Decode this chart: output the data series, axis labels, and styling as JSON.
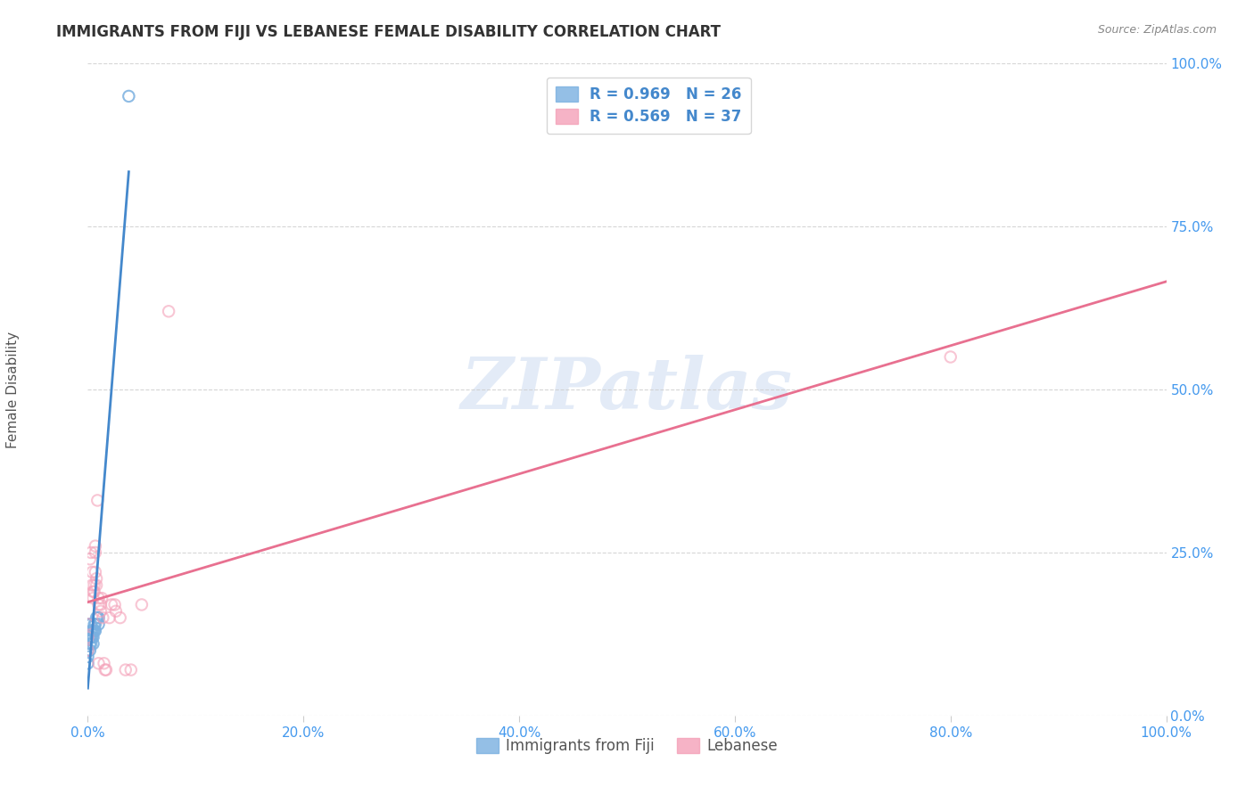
{
  "title": "IMMIGRANTS FROM FIJI VS LEBANESE FEMALE DISABILITY CORRELATION CHART",
  "source": "Source: ZipAtlas.com",
  "xlabel": "",
  "ylabel": "Female Disability",
  "xlim": [
    0.0,
    1.0
  ],
  "ylim": [
    0.0,
    1.0
  ],
  "xticks": [
    0.0,
    0.2,
    0.4,
    0.6,
    0.8,
    1.0
  ],
  "yticks": [
    0.0,
    0.25,
    0.5,
    0.75,
    1.0
  ],
  "xtick_labels": [
    "0.0%",
    "20.0%",
    "40.0%",
    "60.0%",
    "80.0%",
    "100.0%"
  ],
  "ytick_labels": [
    "",
    "25.0%",
    "50.0%",
    "75.0%",
    "100.0%"
  ],
  "right_ytick_labels": [
    "0.0%",
    "25.0%",
    "50.0%",
    "75.0%",
    "100.0%"
  ],
  "fiji_color": "#7ab0e0",
  "lebanese_color": "#f4a0b8",
  "fiji_line_color": "#4488cc",
  "lebanese_line_color": "#e87090",
  "fiji_R": 0.969,
  "fiji_N": 26,
  "lebanese_R": 0.569,
  "lebanese_N": 37,
  "legend_fiji_label": "R = 0.969   N = 26",
  "legend_lebanese_label": "R = 0.569   N = 37",
  "watermark": "ZIPatlas",
  "fiji_x": [
    0.0,
    0.0,
    0.0,
    0.0,
    0.0,
    0.002,
    0.002,
    0.002,
    0.003,
    0.003,
    0.003,
    0.003,
    0.004,
    0.004,
    0.005,
    0.005,
    0.005,
    0.006,
    0.006,
    0.007,
    0.007,
    0.008,
    0.009,
    0.01,
    0.01,
    0.038
  ],
  "fiji_y": [
    0.14,
    0.12,
    0.1,
    0.09,
    0.08,
    0.12,
    0.11,
    0.1,
    0.14,
    0.13,
    0.12,
    0.11,
    0.13,
    0.12,
    0.13,
    0.12,
    0.11,
    0.14,
    0.13,
    0.14,
    0.13,
    0.15,
    0.15,
    0.15,
    0.14,
    0.95
  ],
  "lebanese_x": [
    0.0,
    0.0,
    0.0,
    0.002,
    0.003,
    0.004,
    0.004,
    0.005,
    0.005,
    0.006,
    0.006,
    0.007,
    0.007,
    0.007,
    0.008,
    0.008,
    0.009,
    0.01,
    0.01,
    0.01,
    0.012,
    0.012,
    0.013,
    0.014,
    0.015,
    0.016,
    0.017,
    0.02,
    0.022,
    0.025,
    0.026,
    0.03,
    0.035,
    0.04,
    0.05,
    0.075,
    0.8
  ],
  "lebanese_y": [
    0.14,
    0.12,
    0.1,
    0.24,
    0.25,
    0.22,
    0.2,
    0.19,
    0.18,
    0.2,
    0.19,
    0.26,
    0.25,
    0.22,
    0.21,
    0.2,
    0.33,
    0.18,
    0.17,
    0.08,
    0.17,
    0.16,
    0.18,
    0.15,
    0.08,
    0.07,
    0.07,
    0.15,
    0.17,
    0.17,
    0.16,
    0.15,
    0.07,
    0.07,
    0.17,
    0.62,
    0.55
  ],
  "fiji_scatter_size": 80,
  "lebanese_scatter_size": 80,
  "background_color": "#ffffff",
  "grid_color": "#cccccc"
}
